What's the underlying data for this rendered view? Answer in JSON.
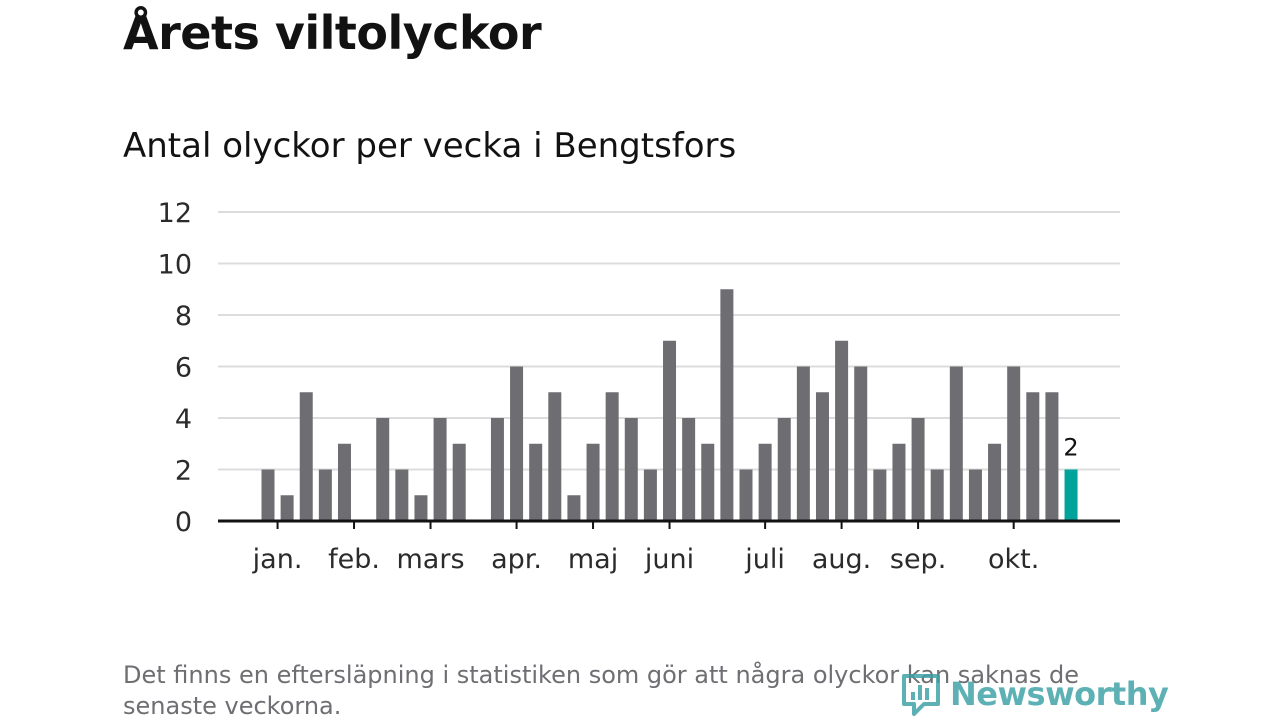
{
  "header": {
    "title": "Årets viltolyckor",
    "subtitle": "Antal olyckor per vecka i Bengtsfors"
  },
  "footer": {
    "note": "Det finns en eftersläpning i statistiken som gör att några olyckor kan saknas de senaste veckorna.",
    "logo_text": "Newsworthy",
    "logo_icon": "newsworthy-chart-icon"
  },
  "colors": {
    "bar": "#6e6d72",
    "highlight": "#00a39b",
    "grid": "#dcdcdc",
    "axis": "#121212",
    "logo": "#3aa1a6"
  },
  "chart_data": {
    "type": "bar",
    "title": "Antal olyckor per vecka i Bengtsfors",
    "xlabel": "",
    "ylabel": "",
    "ylim": [
      0,
      12
    ],
    "yticks": [
      "0",
      "2",
      "4",
      "6",
      "8",
      "10",
      "12"
    ],
    "grid": true,
    "weeks": [
      1,
      2,
      3,
      4,
      5,
      6,
      7,
      8,
      9,
      10,
      11,
      12,
      13,
      14,
      15,
      16,
      17,
      18,
      19,
      20,
      21,
      22,
      23,
      24,
      25,
      26,
      27,
      28,
      29,
      30,
      31,
      32,
      33,
      34,
      35,
      36,
      37,
      38,
      39,
      40,
      41,
      42,
      43
    ],
    "values": [
      2,
      1,
      5,
      2,
      3,
      0,
      4,
      2,
      1,
      4,
      3,
      0,
      4,
      6,
      3,
      5,
      1,
      3,
      5,
      4,
      2,
      7,
      4,
      3,
      9,
      2,
      3,
      4,
      6,
      5,
      7,
      6,
      2,
      3,
      4,
      2,
      6,
      2,
      3,
      6,
      5,
      5,
      2
    ],
    "highlight_index": 42,
    "highlight_label": "2",
    "month_labels": [
      {
        "label": "jan.",
        "week": 1.5
      },
      {
        "label": "feb.",
        "week": 5.5
      },
      {
        "label": "mars",
        "week": 9.5
      },
      {
        "label": "apr.",
        "week": 14
      },
      {
        "label": "maj",
        "week": 18
      },
      {
        "label": "juni",
        "week": 22
      },
      {
        "label": "juli",
        "week": 27
      },
      {
        "label": "aug.",
        "week": 31
      },
      {
        "label": "sep.",
        "week": 35
      },
      {
        "label": "okt.",
        "week": 40
      }
    ]
  }
}
